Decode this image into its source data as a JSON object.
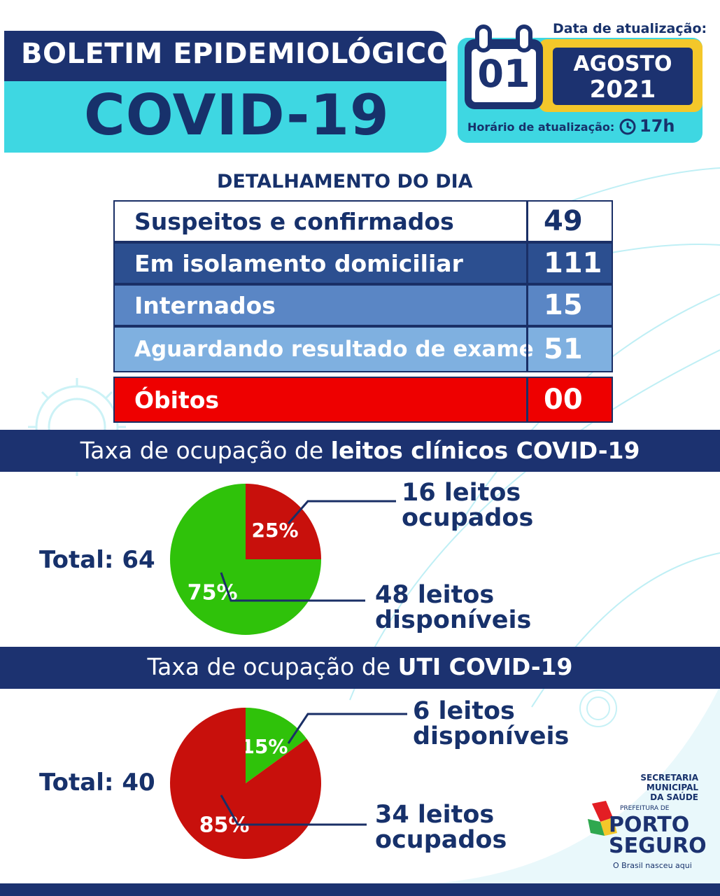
{
  "header": {
    "title": "BOLETIM EPIDEMIOLÓGICO",
    "subtitle": "COVID-19",
    "date_label": "Data de atualização:",
    "day": "01",
    "month": "AGOSTO",
    "year": "2021",
    "time_label": "Horário de atualização:",
    "time": "17h"
  },
  "detail": {
    "title": "DETALHAMENTO DO DIA",
    "rows": [
      {
        "label": "Suspeitos e confirmados",
        "value": "49"
      },
      {
        "label": "Em isolamento domiciliar",
        "value": "111"
      },
      {
        "label": "Internados",
        "value": "15"
      },
      {
        "label": "Aguardando resultado de exame",
        "value": "51"
      },
      {
        "label": "Óbitos",
        "value": "00"
      }
    ]
  },
  "sections": {
    "clinic": {
      "prefix": "Taxa de ocupação de ",
      "bold": "leitos clínicos COVID-19"
    },
    "uti": {
      "prefix": "Taxa de ocupação de ",
      "bold": "UTI COVID-19"
    }
  },
  "colors": {
    "navy": "#1c3270",
    "cyan": "#3ed7e2",
    "yellow": "#f4c72a",
    "green": "#2fc20a",
    "red": "#c8100c",
    "obitos_red": "#ee0000"
  },
  "chart_data": [
    {
      "type": "pie",
      "title": "Taxa de ocupação de leitos clínicos COVID-19",
      "total_label": "Total: 64",
      "slices": [
        {
          "name": "ocupados",
          "value": 25,
          "label": "25%",
          "note_line1": "16 leitos",
          "note_line2": "ocupados",
          "color": "#c8100c"
        },
        {
          "name": "disponíveis",
          "value": 75,
          "label": "75%",
          "note_line1": "48 leitos",
          "note_line2": "disponíveis",
          "color": "#2fc20a"
        }
      ]
    },
    {
      "type": "pie",
      "title": "Taxa de ocupação de UTI COVID-19",
      "total_label": "Total: 40",
      "slices": [
        {
          "name": "disponíveis",
          "value": 15,
          "label": "15%",
          "note_line1": "6 leitos",
          "note_line2": "disponíveis",
          "color": "#2fc20a"
        },
        {
          "name": "ocupados",
          "value": 85,
          "label": "85%",
          "note_line1": "34 leitos",
          "note_line2": "ocupados",
          "color": "#c8100c"
        }
      ]
    }
  ],
  "logo": {
    "sec_line1": "SECRETARIA",
    "sec_line2": "MUNICIPAL",
    "sec_line3": "DA SAÚDE",
    "prefeitura": "PREFEITURA DE",
    "porto": "PORTO",
    "seguro": "SEGURO",
    "slogan": "O Brasil nasceu aqui"
  }
}
